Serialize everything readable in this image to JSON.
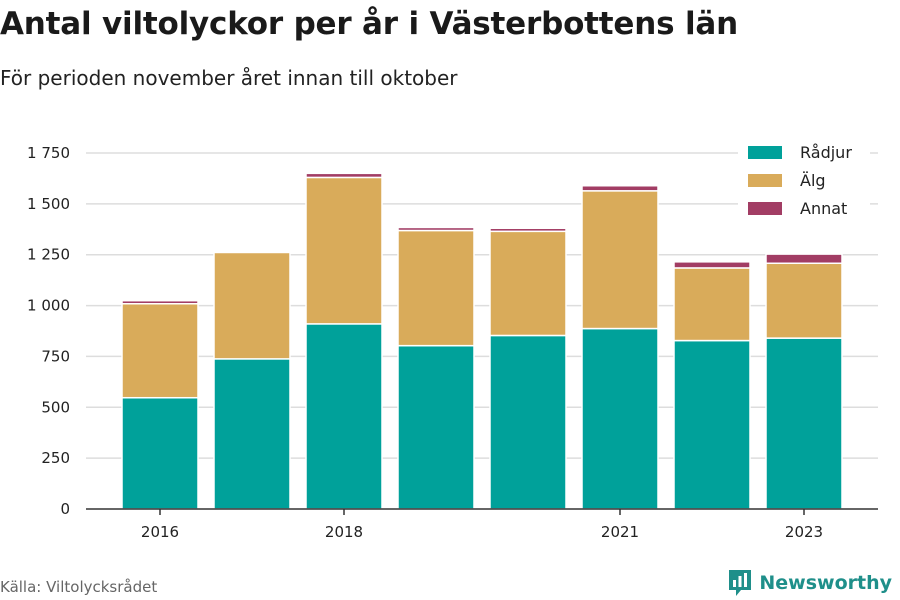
{
  "header": {
    "title": "Antal viltolyckor per år i Västerbottens län",
    "subtitle": "För perioden november året innan till oktober"
  },
  "footer": {
    "source": "Källa: Viltolycksrådet",
    "brand": "Newsworthy"
  },
  "colors": {
    "radjur": "#00a19a",
    "alg": "#d9ab5a",
    "annat": "#a23d64",
    "grid": "#dddddd",
    "axis": "#333333",
    "brand": "#1f8f8a"
  },
  "icons": {
    "brand": "bar-chart-icon"
  },
  "chart_data": {
    "type": "bar",
    "stacked": true,
    "categories": [
      "2016",
      "2017",
      "2018",
      "2019",
      "2020",
      "2021",
      "2022",
      "2023"
    ],
    "x_tick_labels": [
      "2016",
      "",
      "2018",
      "",
      "",
      "2021",
      "",
      "2023"
    ],
    "series": [
      {
        "name": "Rådjur",
        "values": [
          547,
          738,
          910,
          803,
          853,
          887,
          828,
          840
        ]
      },
      {
        "name": "Älg",
        "values": [
          462,
          523,
          720,
          566,
          512,
          677,
          357,
          368
        ]
      },
      {
        "name": "Annat",
        "values": [
          15,
          0,
          20,
          15,
          15,
          25,
          30,
          45
        ]
      }
    ],
    "ylim": [
      0,
      1800
    ],
    "y_ticks": [
      0,
      250,
      500,
      750,
      1000,
      1250,
      1500,
      1750
    ],
    "y_tick_labels": [
      "0",
      "250",
      "500",
      "750",
      "1 000",
      "1 250",
      "1 500",
      "1 750"
    ],
    "grid": true,
    "legend": "top-right"
  }
}
